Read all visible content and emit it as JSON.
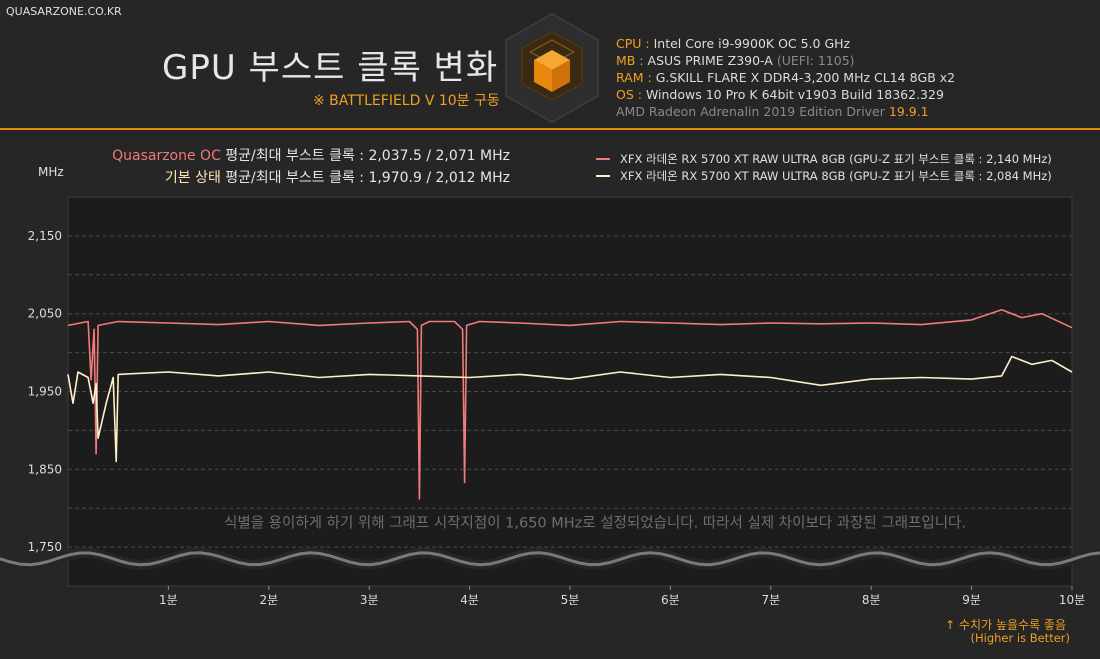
{
  "site": "QUASARZONE.CO.KR",
  "title": "GPU 부스트 클록 변화",
  "subtitle": "※ BATTLEFIELD V 10분 구동",
  "specs": {
    "cpu_key": "CPU :",
    "cpu_val": "Intel Core i9-9900K OC 5.0 GHz",
    "mb_key": "MB :",
    "mb_val": "ASUS PRIME Z390-A",
    "mb_extra": "(UEFI: 1105)",
    "ram_key": "RAM :",
    "ram_val": "G.SKILL FLARE X DDR4-3,200 MHz CL14 8GB x2",
    "os_key": "OS :",
    "os_val": "Windows 10 Pro K 64bit v1903 Build 18362.329",
    "driver_text": "AMD Radeon Adrenalin 2019 Edition Driver",
    "driver_ver": "19.9.1"
  },
  "summary": {
    "oc_label": "Quasarzone OC",
    "oc_text": "평균/최대 부스트 클록 : 2,037.5 / 2,071 MHz",
    "base_label": "기본 상태",
    "base_text": "평균/최대 부스트 클록 : 1,970.9 / 2,012 MHz"
  },
  "note": "식별을 용이하게 하기 위해 그래프 시작지점이 1,650 MHz로 설정되었습니다. 따라서 실제 차이보다 과장된 그래프입니다.",
  "higher_is_better": {
    "line1": "↑ 수치가 높을수록 좋음",
    "line2": "(Higher is Better)"
  },
  "colors": {
    "background": "#262626",
    "plot_bg": "#1c1c1c",
    "accent": "#f0a020",
    "series_oc": "#f07b7b",
    "series_base": "#fff0c8"
  },
  "chart_data": {
    "type": "line",
    "ylabel": "MHz",
    "ylim": [
      1700,
      2200
    ],
    "xlim": [
      0,
      10
    ],
    "y_ticks": [
      1750,
      1850,
      1950,
      2050,
      2150
    ],
    "y_tick_labels": [
      "1,750",
      "1,850",
      "1,950",
      "2,050",
      "2,150"
    ],
    "x_ticks": [
      1,
      2,
      3,
      4,
      5,
      6,
      7,
      8,
      9,
      10
    ],
    "x_tick_labels": [
      "1분",
      "2분",
      "3분",
      "4분",
      "5분",
      "6분",
      "7분",
      "8분",
      "9분",
      "10분"
    ],
    "axis_break_value": 1735,
    "grid": true,
    "legend_position": "top-right",
    "series": [
      {
        "name": "XFX 라데온 RX 5700 XT RAW ULTRA 8GB (GPU-Z 표기 부스트 클록 : 2,140 MHz)",
        "average": 2037.5,
        "max": 2071,
        "x": [
          0,
          0.2,
          0.23,
          0.26,
          0.28,
          0.3,
          0.5,
          1,
          1.5,
          2,
          2.5,
          3,
          3.4,
          3.48,
          3.5,
          3.52,
          3.6,
          3.85,
          3.93,
          3.95,
          3.97,
          4.1,
          4.5,
          5,
          5.5,
          6,
          6.5,
          7,
          7.5,
          8,
          8.5,
          9,
          9.3,
          9.5,
          9.7,
          10
        ],
        "y": [
          2035,
          2040,
          1965,
          2030,
          1870,
          2035,
          2040,
          2038,
          2036,
          2040,
          2035,
          2038,
          2040,
          2030,
          1812,
          2035,
          2040,
          2040,
          2030,
          1833,
          2035,
          2040,
          2038,
          2035,
          2040,
          2038,
          2036,
          2038,
          2037,
          2038,
          2036,
          2042,
          2055,
          2045,
          2050,
          2032
        ]
      },
      {
        "name": "XFX 라데온 RX 5700 XT RAW ULTRA 8GB (GPU-Z 표기 부스트 클록 : 2,084 MHz)",
        "average": 1970.9,
        "max": 2012,
        "x": [
          0,
          0.05,
          0.1,
          0.2,
          0.25,
          0.28,
          0.3,
          0.38,
          0.45,
          0.48,
          0.5,
          1,
          1.5,
          2,
          2.5,
          3,
          3.5,
          4,
          4.5,
          5,
          5.5,
          6,
          6.5,
          7,
          7.5,
          8,
          8.5,
          9,
          9.3,
          9.4,
          9.6,
          9.8,
          10
        ],
        "y": [
          1972,
          1935,
          1975,
          1968,
          1935,
          1960,
          1890,
          1935,
          1968,
          1860,
          1972,
          1975,
          1970,
          1975,
          1968,
          1972,
          1970,
          1968,
          1972,
          1966,
          1975,
          1968,
          1972,
          1968,
          1958,
          1966,
          1968,
          1966,
          1970,
          1995,
          1985,
          1990,
          1975
        ]
      }
    ]
  }
}
